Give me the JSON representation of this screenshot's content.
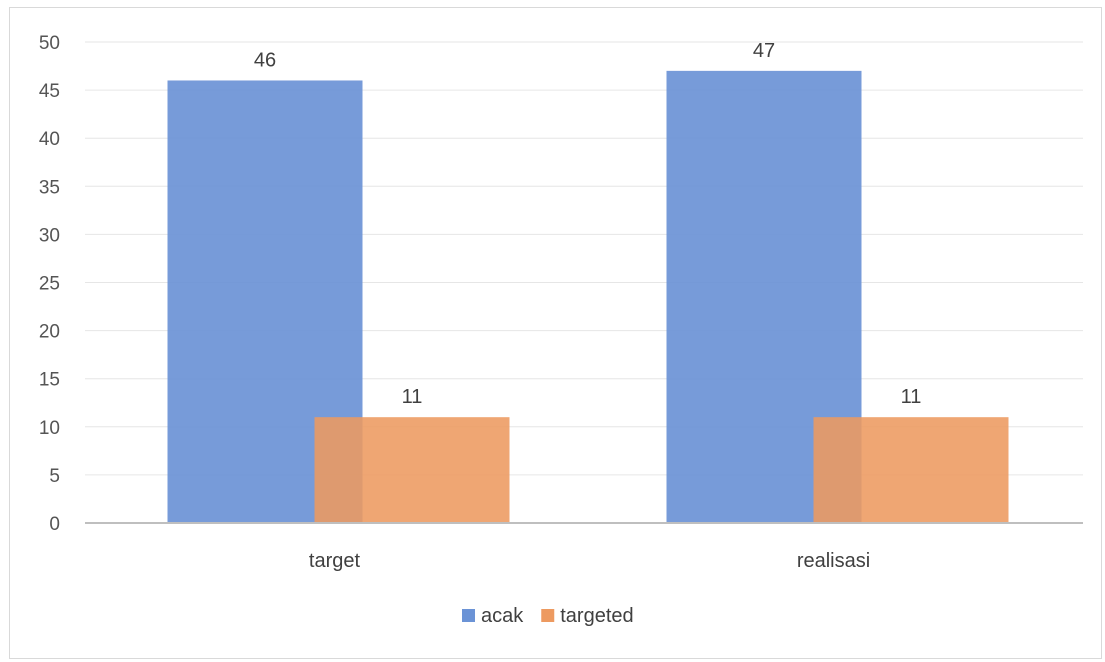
{
  "chart_data": {
    "type": "bar",
    "categories": [
      "target",
      "realisasi"
    ],
    "series": [
      {
        "name": "acak",
        "values": [
          46,
          47
        ],
        "color": "#6b93d6"
      },
      {
        "name": "targeted",
        "values": [
          11,
          11
        ],
        "color": "#ed9a60"
      }
    ],
    "title": "",
    "xlabel": "",
    "ylabel": "",
    "ylim": [
      0,
      50
    ],
    "yticks": [
      0,
      5,
      10,
      15,
      20,
      25,
      30,
      35,
      40,
      45,
      50
    ],
    "grid": true,
    "legend_position": "bottom",
    "overlapping_bars": true
  }
}
